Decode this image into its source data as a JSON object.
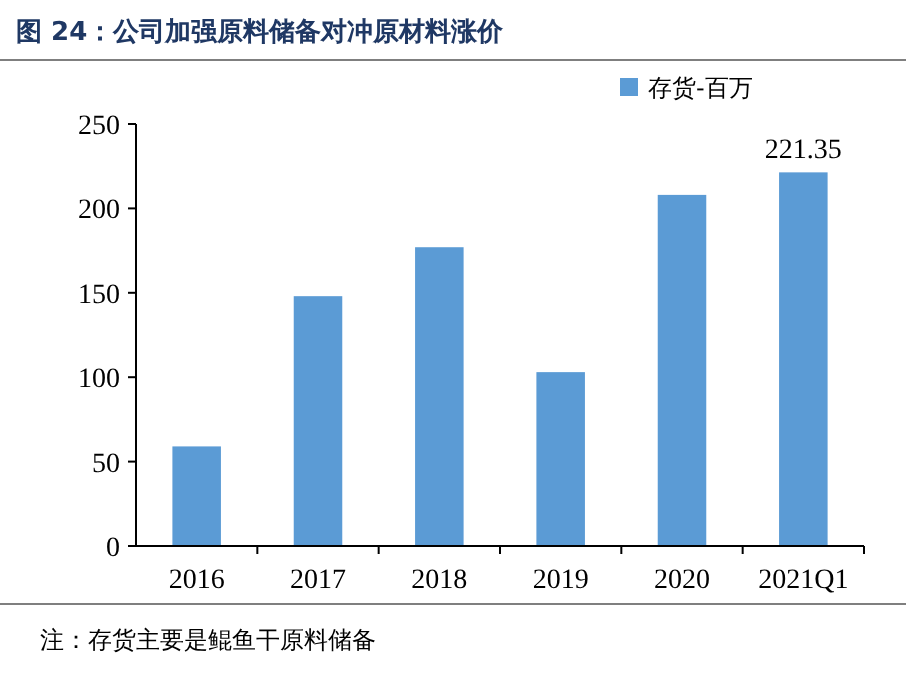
{
  "chart_data": {
    "type": "bar",
    "title": "图 24：公司加强原料储备对冲原材料涨价",
    "categories": [
      "2016",
      "2017",
      "2018",
      "2019",
      "2020",
      "2021Q1"
    ],
    "series": [
      {
        "name": "存货-百万",
        "color": "#5b9bd5",
        "values": [
          59,
          148,
          177,
          103,
          208,
          221.35
        ],
        "value_labels": [
          null,
          null,
          null,
          null,
          null,
          "221.35"
        ]
      }
    ],
    "ylim": [
      0,
      250
    ],
    "yticks": [
      0,
      50,
      100,
      150,
      200,
      250
    ],
    "grid": false,
    "legend": "top right",
    "annotations": [
      "注：存货主要是鲲鱼干原料储备"
    ]
  }
}
